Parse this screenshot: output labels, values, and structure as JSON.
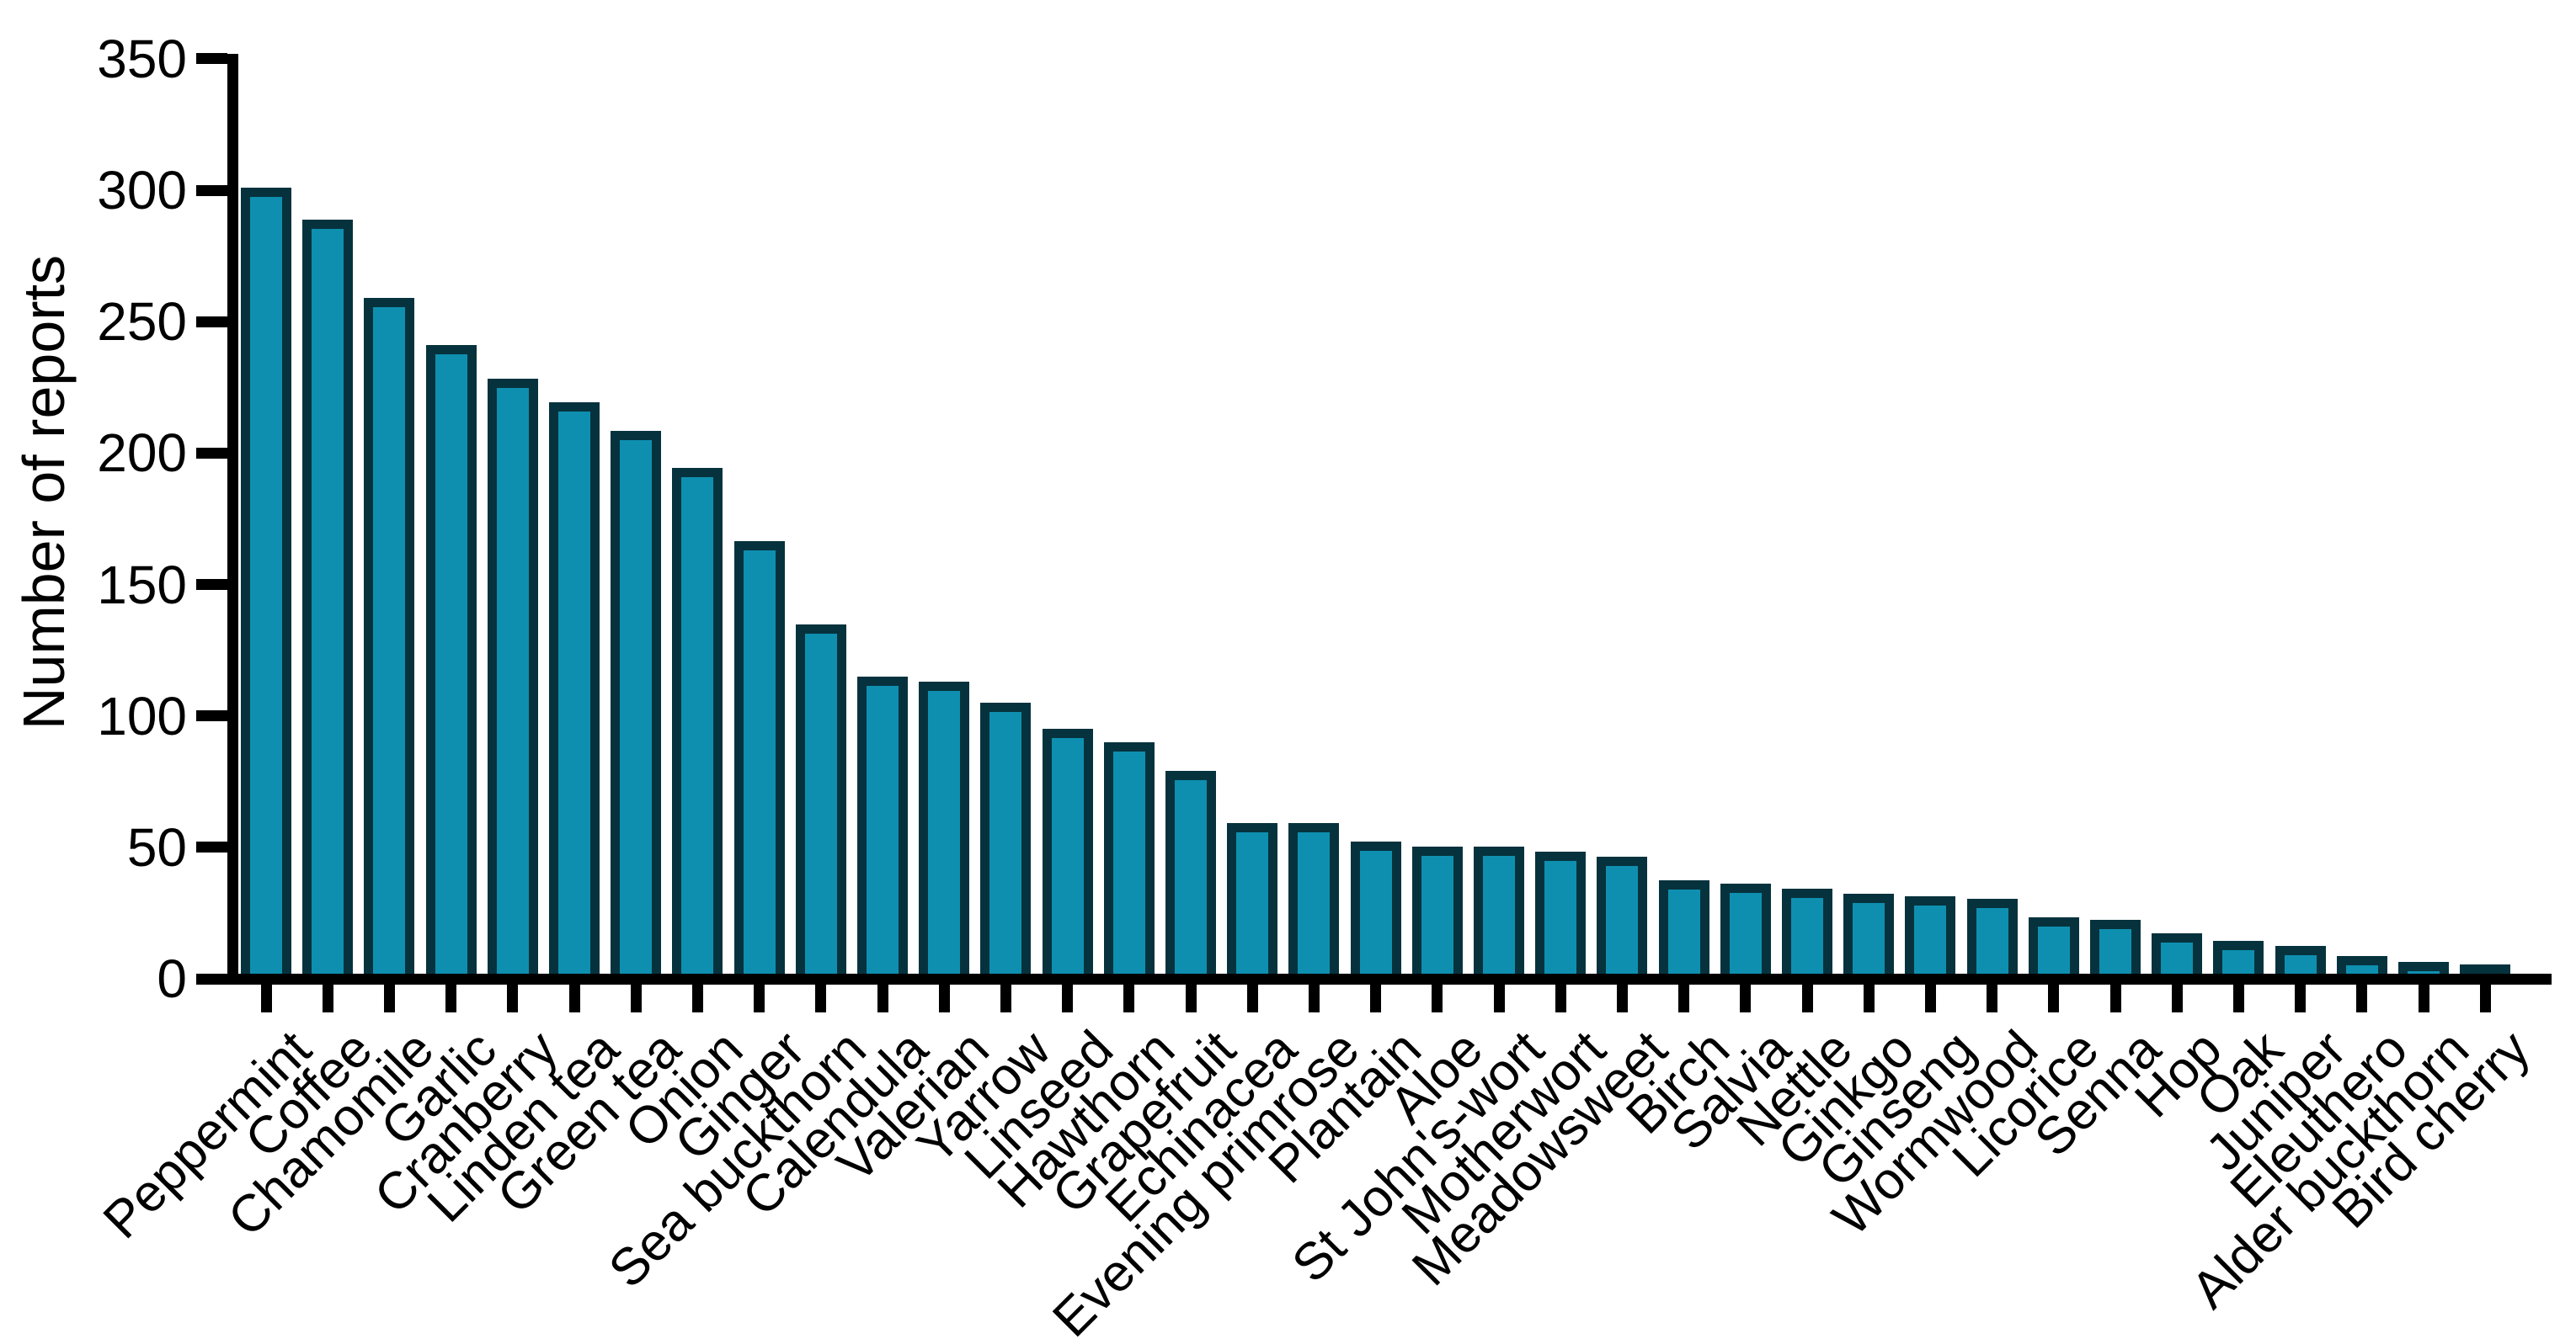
{
  "chart_data": {
    "type": "bar",
    "title": "",
    "xlabel": "",
    "ylabel": "Number of reports",
    "categories": [
      "Peppermint",
      "Coffee",
      "Chamomile",
      "Garlic",
      "Cranberry",
      "Linden tea",
      "Green tea",
      "Onion",
      "Ginger",
      "Sea buckthorn",
      "Calendula",
      "Valerian",
      "Yarrow",
      "Linseed",
      "Hawthorn",
      "Grapefruit",
      "Echinacea",
      "Evening primrose",
      "Plantain",
      "Aloe",
      "St John's-wort",
      "Motherwort",
      "Meadowsweet",
      "Birch",
      "Salvia",
      "Nettle",
      "Ginkgo",
      "Ginseng",
      "Wormwood",
      "Licorice",
      "Senna",
      "Hop",
      "Oak",
      "Juniper",
      "Eleuthero",
      "Alder buckthorn",
      "Bird cherry"
    ],
    "values": [
      299,
      287,
      257,
      239,
      226,
      217,
      206,
      192,
      164,
      132,
      112,
      110,
      102,
      92,
      87,
      76,
      56,
      56,
      49,
      47,
      47,
      45,
      43,
      34,
      33,
      31,
      29,
      28,
      27,
      20,
      19,
      14,
      11,
      9,
      5,
      3,
      2
    ],
    "ylim": [
      0,
      350
    ],
    "ytick_step": 50,
    "yticks": [
      0,
      50,
      100,
      150,
      200,
      250,
      300,
      350
    ],
    "grid": false,
    "legend": null,
    "colors": {
      "bar_fill": "#0e8fb0",
      "bar_stroke": "#06323d",
      "axis": "#000000",
      "background": "#ffffff"
    }
  }
}
